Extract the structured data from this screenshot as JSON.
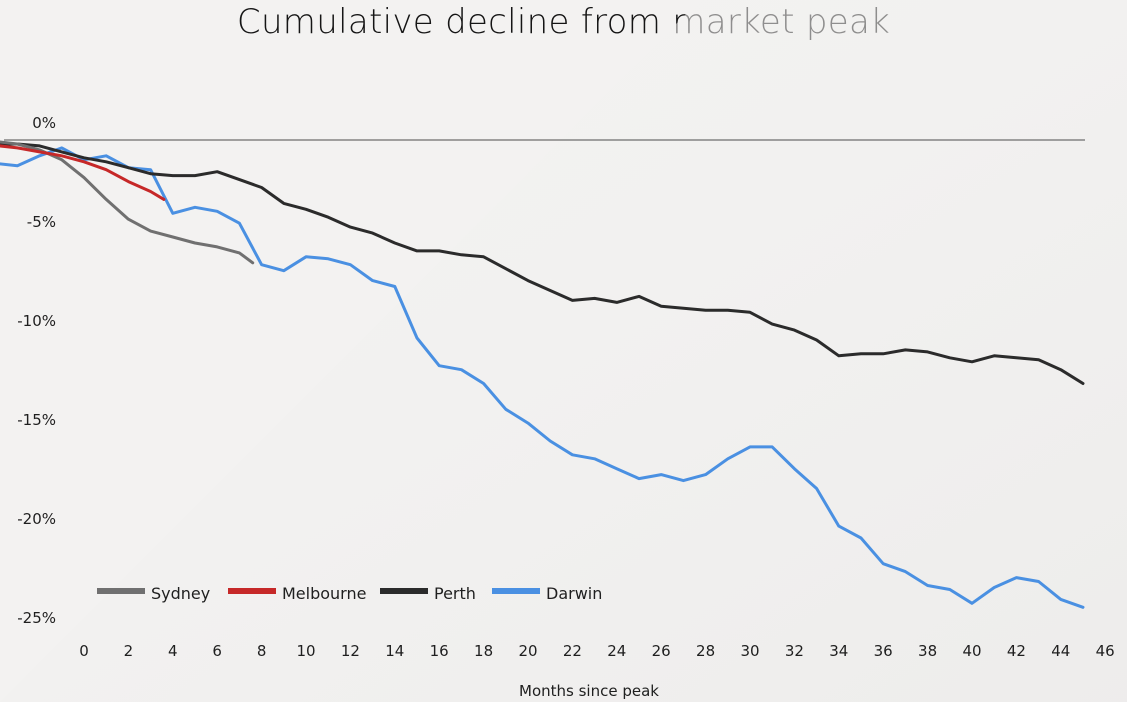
{
  "chart_data": {
    "type": "line",
    "title": "Cumulative decline from market peak",
    "xlabel": "Months since peak",
    "ylabel": "",
    "xlim": [
      -2,
      46
    ],
    "ylim": [
      -25,
      0
    ],
    "xticks": [
      0,
      2,
      4,
      6,
      8,
      10,
      12,
      14,
      16,
      18,
      20,
      22,
      24,
      26,
      28,
      30,
      32,
      34,
      36,
      38,
      40,
      42,
      44,
      46
    ],
    "yticks": [
      {
        "value": 0,
        "label": "0%"
      },
      {
        "value": -5,
        "label": "-5%"
      },
      {
        "value": -10,
        "label": "-10%"
      },
      {
        "value": -15,
        "label": "-15%"
      },
      {
        "value": -20,
        "label": "-20%"
      },
      {
        "value": -25,
        "label": "-25%"
      }
    ],
    "legend_position": "bottom-left",
    "series": [
      {
        "name": "Sydney",
        "color": "#707070",
        "x": [
          -3.8,
          -3,
          -2,
          -1,
          0,
          1,
          2,
          3,
          4,
          5,
          6,
          7,
          7.6
        ],
        "values": [
          -0.1,
          -0.2,
          -0.5,
          -1.0,
          -1.9,
          -3.0,
          -4.0,
          -4.6,
          -4.9,
          -5.2,
          -5.4,
          -5.7,
          -6.2
        ]
      },
      {
        "name": "Melbourne",
        "color": "#c62828",
        "x": [
          -3.8,
          -3,
          -2,
          -1,
          0,
          1,
          2,
          3,
          3.6
        ],
        "values": [
          -0.3,
          -0.4,
          -0.6,
          -0.8,
          -1.1,
          -1.5,
          -2.1,
          -2.6,
          -3.0
        ]
      },
      {
        "name": "Perth",
        "color": "#2b2b2b",
        "x": [
          -3.8,
          -3,
          -2,
          -1,
          0,
          1,
          2,
          3,
          4,
          5,
          6,
          7,
          8,
          9,
          10,
          11,
          12,
          13,
          14,
          15,
          16,
          17,
          18,
          19,
          20,
          21,
          22,
          23,
          24,
          25,
          26,
          27,
          28,
          29,
          30,
          31,
          32,
          33,
          34,
          35,
          36,
          37,
          38,
          39,
          40,
          41,
          42,
          43,
          44,
          45
        ],
        "values": [
          -0.2,
          -0.2,
          -0.3,
          -0.6,
          -0.9,
          -1.1,
          -1.4,
          -1.7,
          -1.8,
          -1.8,
          -1.6,
          -2.0,
          -2.4,
          -3.2,
          -3.5,
          -3.9,
          -4.4,
          -4.7,
          -5.2,
          -5.6,
          -5.6,
          -5.8,
          -5.9,
          -6.5,
          -7.1,
          -7.6,
          -8.1,
          -8.0,
          -8.2,
          -7.9,
          -8.4,
          -8.5,
          -8.6,
          -8.6,
          -8.7,
          -9.3,
          -9.6,
          -10.1,
          -10.9,
          -10.8,
          -10.8,
          -10.6,
          -10.7,
          -11.0,
          -11.2,
          -10.9,
          -11.0,
          -11.1,
          -11.6,
          -12.3
        ]
      },
      {
        "name": "Darwin",
        "color": "#4a90e2",
        "x": [
          -3.8,
          -3,
          -2,
          -1,
          0,
          1,
          2,
          3,
          4,
          5,
          6,
          7,
          8,
          9,
          10,
          11,
          12,
          13,
          14,
          15,
          16,
          17,
          18,
          19,
          20,
          21,
          22,
          23,
          24,
          25,
          26,
          27,
          28,
          29,
          30,
          31,
          32,
          33,
          34,
          35,
          36,
          37,
          38,
          39,
          40,
          41,
          42,
          43,
          44,
          45
        ],
        "values": [
          -1.2,
          -1.3,
          -0.8,
          -0.4,
          -1.0,
          -0.8,
          -1.4,
          -1.5,
          -3.7,
          -3.4,
          -3.6,
          -4.2,
          -6.3,
          -6.6,
          -5.9,
          -6.0,
          -6.3,
          -7.1,
          -7.4,
          -10.0,
          -11.4,
          -11.6,
          -12.3,
          -13.6,
          -14.3,
          -15.2,
          -15.9,
          -16.1,
          -16.6,
          -17.1,
          -16.9,
          -17.2,
          -16.9,
          -16.1,
          -15.5,
          -15.5,
          -16.6,
          -17.6,
          -19.5,
          -20.1,
          -21.4,
          -21.8,
          -22.5,
          -22.7,
          -23.4,
          -22.6,
          -22.1,
          -22.3,
          -23.2,
          -23.6
        ]
      }
    ]
  }
}
